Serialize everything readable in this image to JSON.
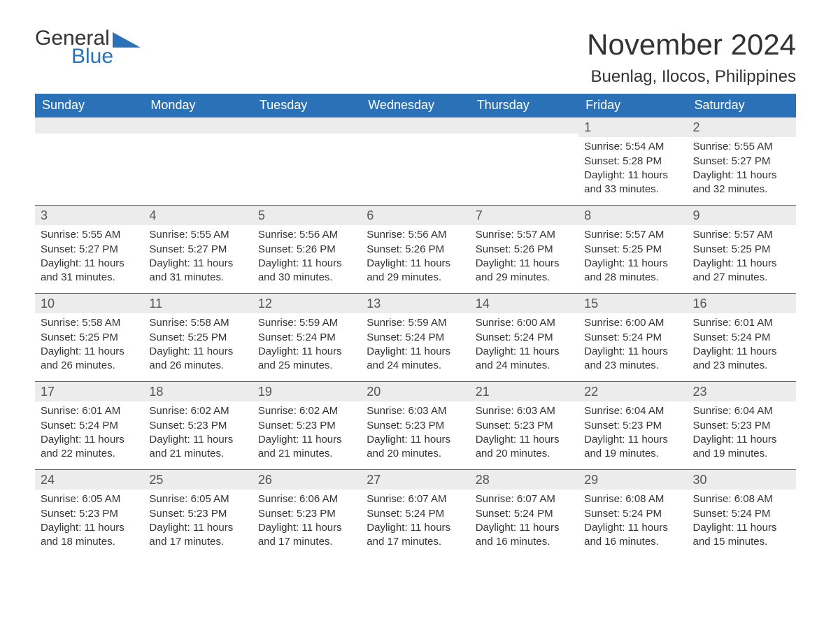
{
  "logo": {
    "word1": "General",
    "word2": "Blue"
  },
  "header": {
    "month_title": "November 2024",
    "location": "Buenlag, Ilocos, Philippines"
  },
  "style": {
    "brand_blue": "#2a71b8",
    "header_bg": "#2a71b8",
    "header_text": "#ffffff",
    "daynum_bg": "#ececec",
    "text_color": "#333333",
    "title_fontsize": 42,
    "location_fontsize": 24,
    "dayheader_fontsize": 18,
    "cell_fontsize": 15
  },
  "day_labels": [
    "Sunday",
    "Monday",
    "Tuesday",
    "Wednesday",
    "Thursday",
    "Friday",
    "Saturday"
  ],
  "field_labels": {
    "sunrise": "Sunrise:",
    "sunset": "Sunset:",
    "daylight": "Daylight:"
  },
  "weeks": [
    [
      null,
      null,
      null,
      null,
      null,
      {
        "n": "1",
        "sunrise": "5:54 AM",
        "sunset": "5:28 PM",
        "daylight": "11 hours and 33 minutes."
      },
      {
        "n": "2",
        "sunrise": "5:55 AM",
        "sunset": "5:27 PM",
        "daylight": "11 hours and 32 minutes."
      }
    ],
    [
      {
        "n": "3",
        "sunrise": "5:55 AM",
        "sunset": "5:27 PM",
        "daylight": "11 hours and 31 minutes."
      },
      {
        "n": "4",
        "sunrise": "5:55 AM",
        "sunset": "5:27 PM",
        "daylight": "11 hours and 31 minutes."
      },
      {
        "n": "5",
        "sunrise": "5:56 AM",
        "sunset": "5:26 PM",
        "daylight": "11 hours and 30 minutes."
      },
      {
        "n": "6",
        "sunrise": "5:56 AM",
        "sunset": "5:26 PM",
        "daylight": "11 hours and 29 minutes."
      },
      {
        "n": "7",
        "sunrise": "5:57 AM",
        "sunset": "5:26 PM",
        "daylight": "11 hours and 29 minutes."
      },
      {
        "n": "8",
        "sunrise": "5:57 AM",
        "sunset": "5:25 PM",
        "daylight": "11 hours and 28 minutes."
      },
      {
        "n": "9",
        "sunrise": "5:57 AM",
        "sunset": "5:25 PM",
        "daylight": "11 hours and 27 minutes."
      }
    ],
    [
      {
        "n": "10",
        "sunrise": "5:58 AM",
        "sunset": "5:25 PM",
        "daylight": "11 hours and 26 minutes."
      },
      {
        "n": "11",
        "sunrise": "5:58 AM",
        "sunset": "5:25 PM",
        "daylight": "11 hours and 26 minutes."
      },
      {
        "n": "12",
        "sunrise": "5:59 AM",
        "sunset": "5:24 PM",
        "daylight": "11 hours and 25 minutes."
      },
      {
        "n": "13",
        "sunrise": "5:59 AM",
        "sunset": "5:24 PM",
        "daylight": "11 hours and 24 minutes."
      },
      {
        "n": "14",
        "sunrise": "6:00 AM",
        "sunset": "5:24 PM",
        "daylight": "11 hours and 24 minutes."
      },
      {
        "n": "15",
        "sunrise": "6:00 AM",
        "sunset": "5:24 PM",
        "daylight": "11 hours and 23 minutes."
      },
      {
        "n": "16",
        "sunrise": "6:01 AM",
        "sunset": "5:24 PM",
        "daylight": "11 hours and 23 minutes."
      }
    ],
    [
      {
        "n": "17",
        "sunrise": "6:01 AM",
        "sunset": "5:24 PM",
        "daylight": "11 hours and 22 minutes."
      },
      {
        "n": "18",
        "sunrise": "6:02 AM",
        "sunset": "5:23 PM",
        "daylight": "11 hours and 21 minutes."
      },
      {
        "n": "19",
        "sunrise": "6:02 AM",
        "sunset": "5:23 PM",
        "daylight": "11 hours and 21 minutes."
      },
      {
        "n": "20",
        "sunrise": "6:03 AM",
        "sunset": "5:23 PM",
        "daylight": "11 hours and 20 minutes."
      },
      {
        "n": "21",
        "sunrise": "6:03 AM",
        "sunset": "5:23 PM",
        "daylight": "11 hours and 20 minutes."
      },
      {
        "n": "22",
        "sunrise": "6:04 AM",
        "sunset": "5:23 PM",
        "daylight": "11 hours and 19 minutes."
      },
      {
        "n": "23",
        "sunrise": "6:04 AM",
        "sunset": "5:23 PM",
        "daylight": "11 hours and 19 minutes."
      }
    ],
    [
      {
        "n": "24",
        "sunrise": "6:05 AM",
        "sunset": "5:23 PM",
        "daylight": "11 hours and 18 minutes."
      },
      {
        "n": "25",
        "sunrise": "6:05 AM",
        "sunset": "5:23 PM",
        "daylight": "11 hours and 17 minutes."
      },
      {
        "n": "26",
        "sunrise": "6:06 AM",
        "sunset": "5:23 PM",
        "daylight": "11 hours and 17 minutes."
      },
      {
        "n": "27",
        "sunrise": "6:07 AM",
        "sunset": "5:24 PM",
        "daylight": "11 hours and 17 minutes."
      },
      {
        "n": "28",
        "sunrise": "6:07 AM",
        "sunset": "5:24 PM",
        "daylight": "11 hours and 16 minutes."
      },
      {
        "n": "29",
        "sunrise": "6:08 AM",
        "sunset": "5:24 PM",
        "daylight": "11 hours and 16 minutes."
      },
      {
        "n": "30",
        "sunrise": "6:08 AM",
        "sunset": "5:24 PM",
        "daylight": "11 hours and 15 minutes."
      }
    ]
  ]
}
